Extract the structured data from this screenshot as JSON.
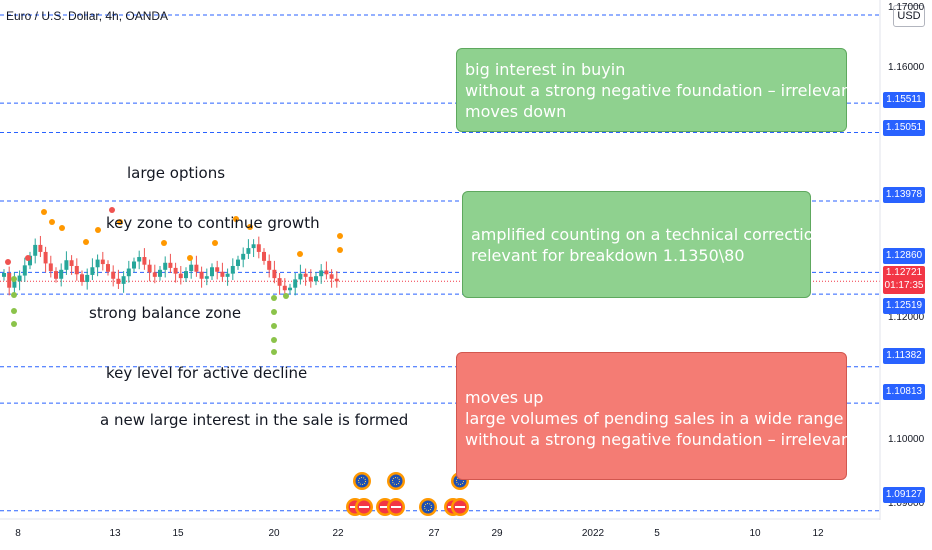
{
  "header": {
    "symbol_title": "Euro / U.S. Dollar, 4h, OANDA",
    "currency_label": "USD"
  },
  "chart_data": {
    "type": "candlestick",
    "title": "Euro / U.S. Dollar, 4h, OANDA",
    "ylim": [
      1.0887,
      1.1738
    ],
    "y_ticks": [
      "1.17000",
      "1.16000",
      "1.12000",
      "1.10000",
      "1.09000"
    ],
    "x_ticks": [
      "8",
      "13",
      "15",
      "20",
      "22",
      "27",
      "29",
      "2022",
      "5",
      "10",
      "12"
    ],
    "levels": [
      "1.15511",
      "1.15051",
      "1.13978",
      "1.12860",
      "1.12519",
      "1.11382",
      "1.10813",
      "1.09127"
    ],
    "current_price": "1.12721",
    "countdown": "01:17:35",
    "candles_close_approx": [
      1.1285,
      1.1262,
      1.1272,
      1.1281,
      1.1297,
      1.1312,
      1.1329,
      1.1318,
      1.13,
      1.1288,
      1.1276,
      1.129,
      1.1305,
      1.1296,
      1.1283,
      1.1271,
      1.1282,
      1.1294,
      1.1306,
      1.1299,
      1.1287,
      1.1276,
      1.1268,
      1.128,
      1.1292,
      1.1303,
      1.131,
      1.1298,
      1.1286,
      1.1279,
      1.129,
      1.1301,
      1.1293,
      1.1284,
      1.1277,
      1.1288,
      1.1298,
      1.1287,
      1.1276,
      1.128,
      1.1294,
      1.1287,
      1.1279,
      1.1284,
      1.1296,
      1.1306,
      1.1315,
      1.1324,
      1.133,
      1.1318,
      1.1304,
      1.129,
      1.1277,
      1.1265,
      1.1258,
      1.1262,
      1.1275,
      1.1284,
      1.1279,
      1.1272,
      1.128,
      1.1289,
      1.1283,
      1.1276,
      1.1272
    ],
    "annotations": {
      "text_labels": [
        "large options",
        "key zone to continue growth",
        "strong balance zone",
        "key level for active decline",
        "a new large interest in the sale is formed"
      ],
      "boxes": [
        {
          "color": "green",
          "lines": [
            "big interest in buyin",
            "without a strong negative foundation – irrelevant",
            "moves down"
          ]
        },
        {
          "color": "green",
          "lines": [
            "amplified counting on a technical correction",
            "relevant for breakdown 1.1350\\80"
          ]
        },
        {
          "color": "red",
          "lines": [
            "moves up",
            "large volumes of pending sales in a wide range",
            "without a strong negative foundation – irrelevant"
          ]
        }
      ]
    }
  },
  "colors": {
    "up": "#26a69a",
    "down": "#ef5350",
    "green_box": "#8fd18f",
    "red_box": "#f47c74",
    "level_line": "#2962ff"
  }
}
